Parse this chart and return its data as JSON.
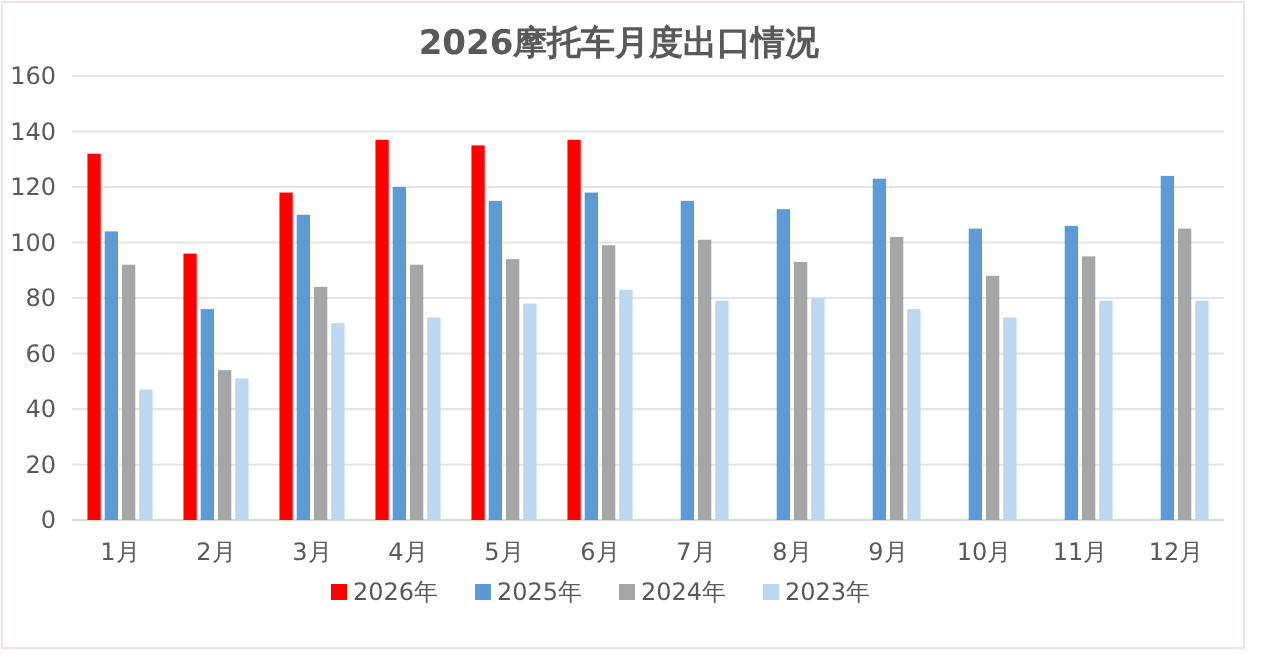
{
  "chart_data": {
    "type": "bar",
    "title": "2026摩托车月度出口情况",
    "categories": [
      "1月",
      "2月",
      "3月",
      "4月",
      "5月",
      "6月",
      "7月",
      "8月",
      "9月",
      "10月",
      "11月",
      "12月"
    ],
    "series": [
      {
        "name": "2026年",
        "color": "#ff0000",
        "values": [
          132,
          96,
          118,
          137,
          135,
          137,
          null,
          null,
          null,
          null,
          null,
          null
        ]
      },
      {
        "name": "2025年",
        "color": "#5b9bd5",
        "values": [
          104,
          76,
          110,
          120,
          115,
          118,
          115,
          112,
          123,
          105,
          106,
          124
        ]
      },
      {
        "name": "2024年",
        "color": "#a5a5a5",
        "values": [
          92,
          54,
          84,
          92,
          94,
          99,
          101,
          93,
          102,
          88,
          95,
          105
        ]
      },
      {
        "name": "2023年",
        "color": "#bdd7ee",
        "values": [
          47,
          51,
          71,
          73,
          78,
          83,
          79,
          80,
          76,
          73,
          79,
          79
        ]
      }
    ],
    "ylim": [
      0,
      160
    ],
    "yticks": [
      0,
      20,
      40,
      60,
      80,
      100,
      120,
      140,
      160
    ],
    "grid": "y",
    "legend": "bottom"
  }
}
